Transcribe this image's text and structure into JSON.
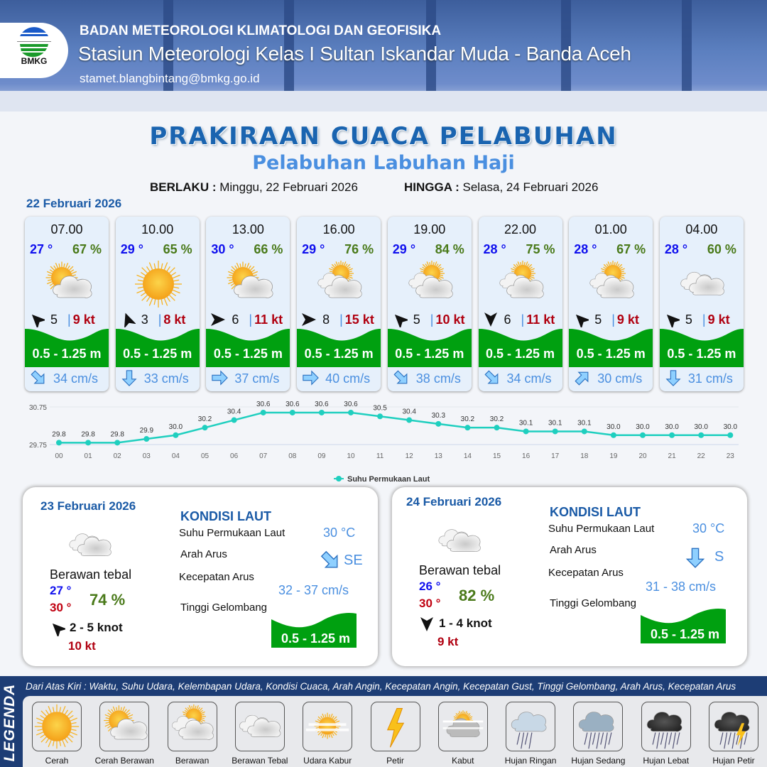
{
  "header": {
    "agency": "BADAN METEOROLOGI KLIMATOLOGI DAN GEOFISIKA",
    "station": "Stasiun Meteorologi Kelas I Sultan Iskandar Muda - Banda Aceh",
    "email": "stamet.blangbintang@bmkg.go.id",
    "logo_text": "BMKG"
  },
  "title": "PRAKIRAAN CUACA PELABUHAN",
  "subtitle": "Pelabuhan Labuhan Haji",
  "validity": {
    "from_label": "BERLAKU :",
    "from": "Minggu, 22 Februari 2026",
    "to_label": "HINGGA :",
    "to": "Selasa, 24 Februari 2026"
  },
  "day1": {
    "date": "22 Februari 2026",
    "forecasts": [
      {
        "time": "07.00",
        "temp": "27 °",
        "hum": "67 %",
        "icon": "cerah-berawan",
        "wind_dir": "NW",
        "wind": "5",
        "gust": "9 kt",
        "wave": "0.5 - 1.25 m",
        "cur_dir": "SE",
        "cur": "34 cm/s"
      },
      {
        "time": "10.00",
        "temp": "29 °",
        "hum": "65 %",
        "icon": "cerah",
        "wind_dir": "NNW",
        "wind": "3",
        "gust": "8 kt",
        "wave": "0.5 - 1.25 m",
        "cur_dir": "S",
        "cur": "33 cm/s"
      },
      {
        "time": "13.00",
        "temp": "30 °",
        "hum": "66 %",
        "icon": "cerah-berawan",
        "wind_dir": "E",
        "wind": "6",
        "gust": "11 kt",
        "wave": "0.5 - 1.25 m",
        "cur_dir": "E",
        "cur": "37 cm/s"
      },
      {
        "time": "16.00",
        "temp": "29 °",
        "hum": "76 %",
        "icon": "berawan",
        "wind_dir": "E",
        "wind": "8",
        "gust": "15 kt",
        "wave": "0.5 - 1.25 m",
        "cur_dir": "E",
        "cur": "40 cm/s"
      },
      {
        "time": "19.00",
        "temp": "29 °",
        "hum": "84 %",
        "icon": "berawan",
        "wind_dir": "NW",
        "wind": "5",
        "gust": "10 kt",
        "wave": "0.5 - 1.25 m",
        "cur_dir": "SE",
        "cur": "38 cm/s"
      },
      {
        "time": "22.00",
        "temp": "28 °",
        "hum": "75 %",
        "icon": "berawan",
        "wind_dir": "S",
        "wind": "6",
        "gust": "11 kt",
        "wave": "0.5 - 1.25 m",
        "cur_dir": "SE",
        "cur": "34 cm/s"
      },
      {
        "time": "01.00",
        "temp": "28 °",
        "hum": "67 %",
        "icon": "berawan",
        "wind_dir": "NW",
        "wind": "5",
        "gust": "9 kt",
        "wave": "0.5 - 1.25 m",
        "cur_dir": "NE",
        "cur": "30 cm/s"
      },
      {
        "time": "04.00",
        "temp": "28 °",
        "hum": "60 %",
        "icon": "berawan-tebal",
        "wind_dir": "NW",
        "wind": "5",
        "gust": "9 kt",
        "wave": "0.5 - 1.25 m",
        "cur_dir": "S",
        "cur": "31 cm/s"
      }
    ]
  },
  "chart_data": {
    "type": "line",
    "categories": [
      "00",
      "01",
      "02",
      "03",
      "04",
      "05",
      "06",
      "07",
      "08",
      "09",
      "10",
      "11",
      "12",
      "13",
      "14",
      "15",
      "16",
      "17",
      "18",
      "19",
      "20",
      "21",
      "22",
      "23"
    ],
    "series": [
      {
        "name": "Suhu Permukaan Laut",
        "values": [
          29.8,
          29.8,
          29.8,
          29.9,
          30.0,
          30.2,
          30.4,
          30.6,
          30.6,
          30.6,
          30.6,
          30.5,
          30.4,
          30.3,
          30.2,
          30.2,
          30.1,
          30.1,
          30.1,
          30.0,
          30.0,
          30.0,
          30.0,
          30.0
        ],
        "color": "#1fcfbf"
      }
    ],
    "yticks": [
      "30.75",
      "29.75"
    ],
    "ylim": [
      29.75,
      30.75
    ],
    "legend": "bottom",
    "grid": true
  },
  "panels": [
    {
      "date": "23 Februari 2026",
      "icon": "berawan-tebal",
      "cond": "Berawan tebal",
      "tmin": "27 °",
      "tmax": "30 °",
      "hum": "74 %",
      "wind_dir": "NW",
      "wind": "2  - 5 knot",
      "gust": "10 kt",
      "kondisi": "KONDISI LAUT",
      "sst_label": "Suhu Permukaan Laut",
      "sst": "30 °C",
      "dir_label": "Arah Arus",
      "cur_dir": "SE",
      "cur_dir_text": "SE",
      "spd_label": "Kecepatan Arus",
      "spd": "32  - 37 cm/s",
      "wave_label": "Tinggi Gelombang",
      "wave": "0.5 - 1.25 m"
    },
    {
      "date": "24 Februari 2026",
      "icon": "berawan-tebal",
      "cond": "Berawan tebal",
      "tmin": "26 °",
      "tmax": "30 °",
      "hum": "82 %",
      "wind_dir": "S",
      "wind": "1  - 4 knot",
      "gust": "9 kt",
      "kondisi": "KONDISI LAUT",
      "sst_label": "Suhu Permukaan Laut",
      "sst": "30 °C",
      "dir_label": "Arah Arus",
      "cur_dir": "S",
      "cur_dir_text": "S",
      "spd_label": "Kecepatan Arus",
      "spd": "31 - 38 cm/s",
      "wave_label": "Tinggi Gelombang",
      "wave": "0.5 - 1.25 m"
    }
  ],
  "legend": {
    "title": "LEGENDA",
    "description": "Dari Atas Kiri : Waktu, Suhu Udara, Kelembapan Udara, Kondisi Cuaca, Arah Angin, Kecepatan Angin, Kecepatan Gust, Tinggi Gelombang, Arah Arus, Kecepatan Arus",
    "items": [
      {
        "label": "Cerah",
        "icon": "cerah"
      },
      {
        "label": "Cerah Berawan",
        "icon": "cerah-berawan"
      },
      {
        "label": "Berawan",
        "icon": "berawan"
      },
      {
        "label": "Berawan Tebal",
        "icon": "berawan-tebal"
      },
      {
        "label": "Udara Kabur",
        "icon": "udara-kabur"
      },
      {
        "label": "Petir",
        "icon": "petir"
      },
      {
        "label": "Kabut",
        "icon": "kabut"
      },
      {
        "label": "Hujan Ringan",
        "icon": "hujan-ringan"
      },
      {
        "label": "Hujan Sedang",
        "icon": "hujan-sedang"
      },
      {
        "label": "Hujan Lebat",
        "icon": "hujan-lebat"
      },
      {
        "label": "Hujan Petir",
        "icon": "hujan-petir"
      }
    ]
  },
  "colors": {
    "temp": "#1010ee",
    "tmax": "#c00010",
    "humidity": "#4a7a1a",
    "gust": "#b00010",
    "wave": "#00a010",
    "current": "#4a8fe0",
    "title": "#1a64b0"
  }
}
